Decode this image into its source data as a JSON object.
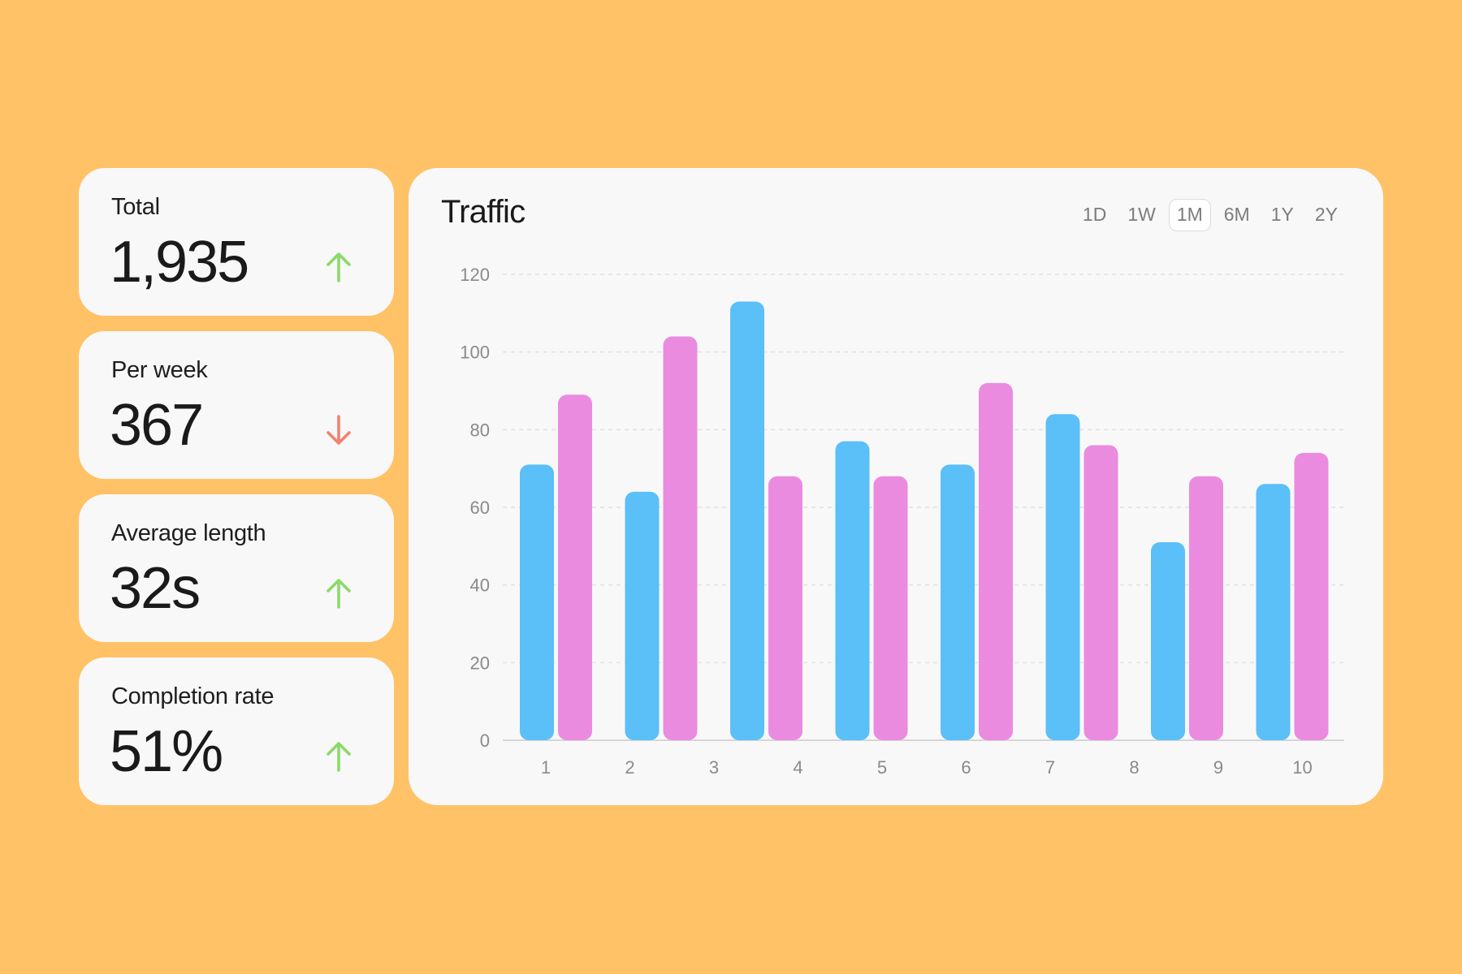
{
  "stats": [
    {
      "label": "Total",
      "value": "1,935",
      "trend": "up"
    },
    {
      "label": "Per week",
      "value": "367",
      "trend": "down"
    },
    {
      "label": "Average length",
      "value": "32s",
      "trend": "up"
    },
    {
      "label": "Completion rate",
      "value": "51%",
      "trend": "up"
    }
  ],
  "trend_colors": {
    "up": "#8CD96A",
    "down": "#F3816E"
  },
  "range_tabs": {
    "items": [
      "1D",
      "1W",
      "1M",
      "6M",
      "1Y",
      "2Y"
    ],
    "active": "1M"
  },
  "chart_data": {
    "type": "bar",
    "title": "Traffic",
    "xlabel": "",
    "ylabel": "",
    "categories": [
      "1",
      "2",
      "3",
      "4",
      "5",
      "6",
      "7",
      "8",
      "9",
      "10"
    ],
    "series": [
      {
        "color": "#5BBFF8",
        "values": [
          71,
          64,
          113,
          77,
          71,
          84,
          51,
          66,
          0,
          0
        ]
      },
      {
        "color": "#EA8BE0",
        "values": [
          89,
          104,
          68,
          68,
          92,
          76,
          68,
          74,
          0,
          0
        ]
      }
    ],
    "ylim": [
      0,
      120
    ],
    "yticks": [
      0,
      20,
      40,
      60,
      80,
      100,
      120
    ],
    "grid": true,
    "legend": "none"
  }
}
